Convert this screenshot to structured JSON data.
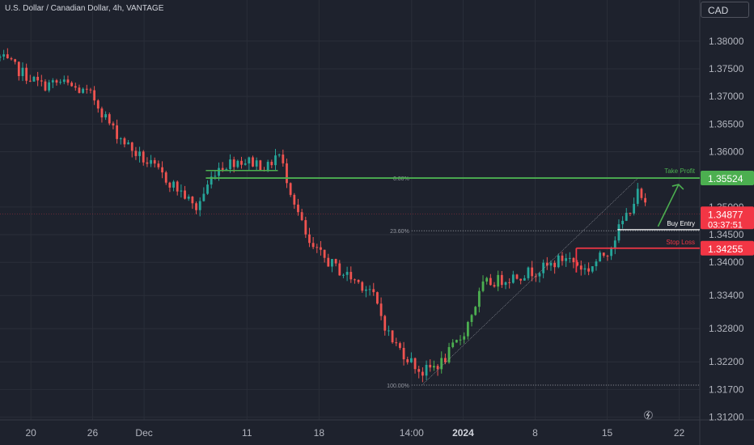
{
  "header": {
    "title": "U.S. Dollar / Canadian Dollar, 4h, VANTAGE",
    "currency": "CAD"
  },
  "colors": {
    "bg": "#1e222d",
    "up": "#26a69a",
    "up_vivid": "#4caf50",
    "down": "#ef5350",
    "grid": "#2a2e39",
    "take_profit": "#4caf50",
    "stop_loss": "#f23645",
    "entry": "#d1d4dc",
    "current": "#f23645"
  },
  "chart_data": {
    "type": "candlestick",
    "xlim": [
      "2023-11-17",
      "2024-01-24"
    ],
    "ylim": [
      1.3115,
      1.3848
    ],
    "x_ticks": [
      {
        "label": "20",
        "date": "2023-11-20"
      },
      {
        "label": "26",
        "date": "2023-11-26"
      },
      {
        "label": "Dec",
        "date": "2023-12-01"
      },
      {
        "label": "11",
        "date": "2023-12-11"
      },
      {
        "label": "18",
        "date": "2023-12-18"
      },
      {
        "label": "14:00",
        "date": "2023-12-27"
      },
      {
        "label": "2024",
        "date": "2024-01-01"
      },
      {
        "label": "8",
        "date": "2024-01-08"
      },
      {
        "label": "15",
        "date": "2024-01-15"
      },
      {
        "label": "22",
        "date": "2024-01-22"
      }
    ],
    "y_ticks": [
      "1.38000",
      "1.37500",
      "1.37000",
      "1.36500",
      "1.36000",
      "1.35000",
      "1.34500",
      "1.34000",
      "1.33400",
      "1.32800",
      "1.32200",
      "1.31700",
      "1.31200"
    ],
    "price_path": [
      [
        "2023-11-17",
        1.377
      ],
      [
        "2023-11-19",
        1.3745
      ],
      [
        "2023-11-21",
        1.372
      ],
      [
        "2023-11-23",
        1.3725
      ],
      [
        "2023-11-26",
        1.37
      ],
      [
        "2023-11-28",
        1.364
      ],
      [
        "2023-11-30",
        1.36
      ],
      [
        "2023-12-02",
        1.357
      ],
      [
        "2023-12-05",
        1.352
      ],
      [
        "2023-12-06",
        1.3495
      ],
      [
        "2023-12-08",
        1.357
      ],
      [
        "2023-12-10",
        1.3585
      ],
      [
        "2023-12-12",
        1.358
      ],
      [
        "2023-12-13",
        1.357
      ],
      [
        "2023-12-14",
        1.36
      ],
      [
        "2023-12-15",
        1.3545
      ],
      [
        "2023-12-17",
        1.343
      ],
      [
        "2023-12-20",
        1.3385
      ],
      [
        "2023-12-23",
        1.335
      ],
      [
        "2023-12-25",
        1.326
      ],
      [
        "2023-12-28",
        1.32
      ],
      [
        "2023-12-30",
        1.322
      ],
      [
        "2024-01-01",
        1.327
      ],
      [
        "2024-01-03",
        1.336
      ],
      [
        "2024-01-06",
        1.3375
      ],
      [
        "2024-01-09",
        1.339
      ],
      [
        "2024-01-11",
        1.341
      ],
      [
        "2024-01-13",
        1.3385
      ],
      [
        "2024-01-15",
        1.342
      ],
      [
        "2024-01-17",
        1.349
      ],
      [
        "2024-01-18",
        1.3525
      ],
      [
        "2024-01-19",
        1.3488
      ]
    ],
    "fibonacci": [
      {
        "label": "0.00%",
        "value": 1.35524
      },
      {
        "label": "23.60%",
        "value": 1.3457
      },
      {
        "label": "100.00%",
        "value": 1.3178
      }
    ],
    "levels": [
      {
        "name": "Take Profit",
        "value": 1.35524,
        "price_label": "1.35524",
        "color": "#4caf50"
      },
      {
        "name": "Buy Entry",
        "value": 1.3459,
        "color": "#d1d4dc"
      },
      {
        "name": "Stop Loss",
        "value": 1.34255,
        "price_label": "1.34255",
        "color": "#f23645"
      }
    ],
    "horizontal_line": {
      "value": 1.3566,
      "start": "2023-12-07",
      "end": "2023-12-14"
    },
    "current_price": {
      "value": 1.34877,
      "label": "1.34877",
      "countdown": "03:37:51"
    }
  }
}
